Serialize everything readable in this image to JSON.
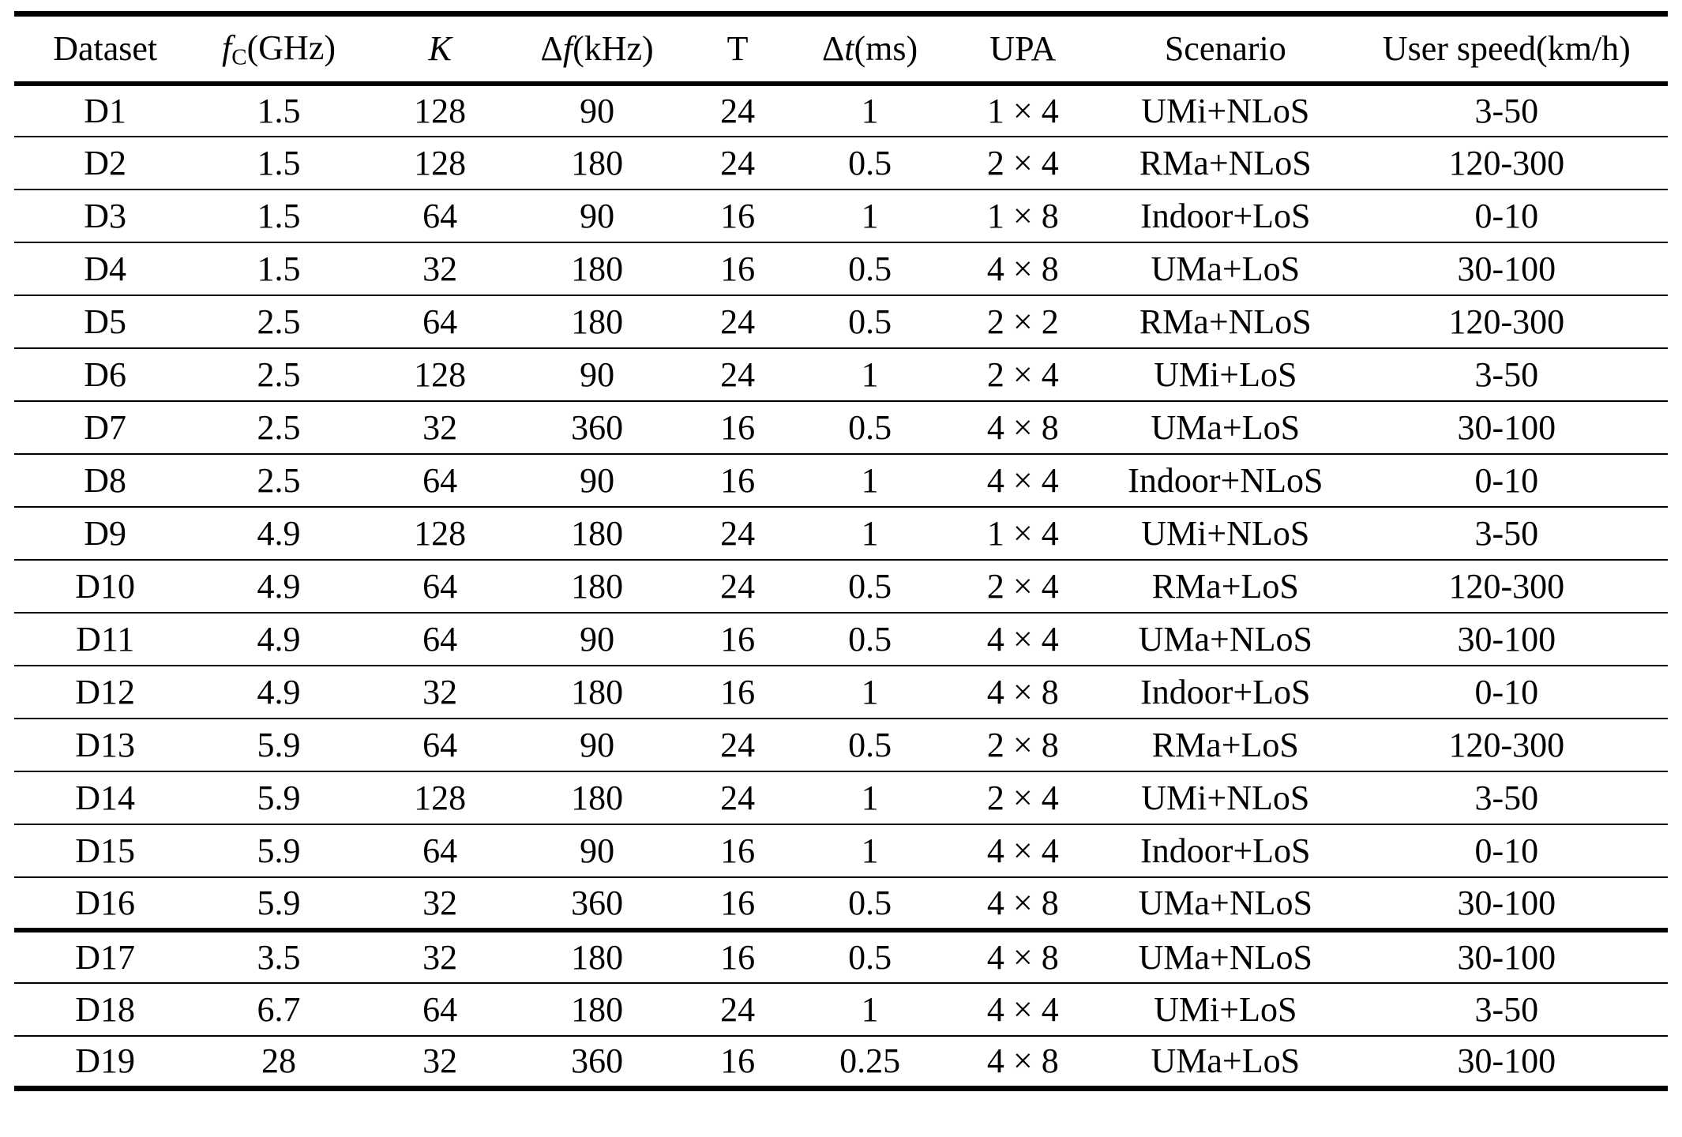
{
  "table": {
    "columns": [
      {
        "key": "dataset",
        "segments": [
          {
            "text": "Dataset"
          }
        ]
      },
      {
        "key": "fc_ghz",
        "segments": [
          {
            "text": "f",
            "italic": true
          },
          {
            "text": "C",
            "sub": true
          },
          {
            "text": "(GHz)"
          }
        ]
      },
      {
        "key": "k",
        "segments": [
          {
            "text": "K",
            "italic": true
          }
        ]
      },
      {
        "key": "df_khz",
        "segments": [
          {
            "text": "Δ"
          },
          {
            "text": "f",
            "italic": true
          },
          {
            "text": "(kHz)"
          }
        ]
      },
      {
        "key": "t",
        "segments": [
          {
            "text": "T"
          }
        ]
      },
      {
        "key": "dt_ms",
        "segments": [
          {
            "text": "Δ"
          },
          {
            "text": "t",
            "italic": true
          },
          {
            "text": "(ms)"
          }
        ]
      },
      {
        "key": "upa",
        "segments": [
          {
            "text": "UPA"
          }
        ]
      },
      {
        "key": "scenario",
        "segments": [
          {
            "text": "Scenario"
          }
        ]
      },
      {
        "key": "speed",
        "segments": [
          {
            "text": "User speed(km/h)"
          }
        ]
      }
    ],
    "column_widths_percent": [
      11,
      10,
      9.5,
      9.5,
      7.5,
      8.5,
      10,
      14.5,
      19.5
    ],
    "rows": [
      [
        "D1",
        "1.5",
        "128",
        "90",
        "24",
        "1",
        "1 × 4",
        "UMi+NLoS",
        "3-50"
      ],
      [
        "D2",
        "1.5",
        "128",
        "180",
        "24",
        "0.5",
        "2 × 4",
        "RMa+NLoS",
        "120-300"
      ],
      [
        "D3",
        "1.5",
        "64",
        "90",
        "16",
        "1",
        "1 × 8",
        "Indoor+LoS",
        "0-10"
      ],
      [
        "D4",
        "1.5",
        "32",
        "180",
        "16",
        "0.5",
        "4 × 8",
        "UMa+LoS",
        "30-100"
      ],
      [
        "D5",
        "2.5",
        "64",
        "180",
        "24",
        "0.5",
        "2 × 2",
        "RMa+NLoS",
        "120-300"
      ],
      [
        "D6",
        "2.5",
        "128",
        "90",
        "24",
        "1",
        "2 × 4",
        "UMi+LoS",
        "3-50"
      ],
      [
        "D7",
        "2.5",
        "32",
        "360",
        "16",
        "0.5",
        "4 × 8",
        "UMa+LoS",
        "30-100"
      ],
      [
        "D8",
        "2.5",
        "64",
        "90",
        "16",
        "1",
        "4 × 4",
        "Indoor+NLoS",
        "0-10"
      ],
      [
        "D9",
        "4.9",
        "128",
        "180",
        "24",
        "1",
        "1 × 4",
        "UMi+NLoS",
        "3-50"
      ],
      [
        "D10",
        "4.9",
        "64",
        "180",
        "24",
        "0.5",
        "2 × 4",
        "RMa+LoS",
        "120-300"
      ],
      [
        "D11",
        "4.9",
        "64",
        "90",
        "16",
        "0.5",
        "4 × 4",
        "UMa+NLoS",
        "30-100"
      ],
      [
        "D12",
        "4.9",
        "32",
        "180",
        "16",
        "1",
        "4 × 8",
        "Indoor+LoS",
        "0-10"
      ],
      [
        "D13",
        "5.9",
        "64",
        "90",
        "24",
        "0.5",
        "2 × 8",
        "RMa+LoS",
        "120-300"
      ],
      [
        "D14",
        "5.9",
        "128",
        "180",
        "24",
        "1",
        "2 × 4",
        "UMi+NLoS",
        "3-50"
      ],
      [
        "D15",
        "5.9",
        "64",
        "90",
        "16",
        "1",
        "4 × 4",
        "Indoor+LoS",
        "0-10"
      ],
      [
        "D16",
        "5.9",
        "32",
        "360",
        "16",
        "0.5",
        "4 × 8",
        "UMa+NLoS",
        "30-100"
      ],
      [
        "D17",
        "3.5",
        "32",
        "180",
        "16",
        "0.5",
        "4 × 8",
        "UMa+NLoS",
        "30-100"
      ],
      [
        "D18",
        "6.7",
        "64",
        "180",
        "24",
        "1",
        "4 × 4",
        "UMi+LoS",
        "3-50"
      ],
      [
        "D19",
        "28",
        "32",
        "360",
        "16",
        "0.25",
        "4 × 8",
        "UMa+LoS",
        "30-100"
      ]
    ],
    "thick_separator_after_row": "D16"
  },
  "colors": {
    "text": "#000000",
    "background": "#ffffff",
    "rule": "#000000"
  }
}
